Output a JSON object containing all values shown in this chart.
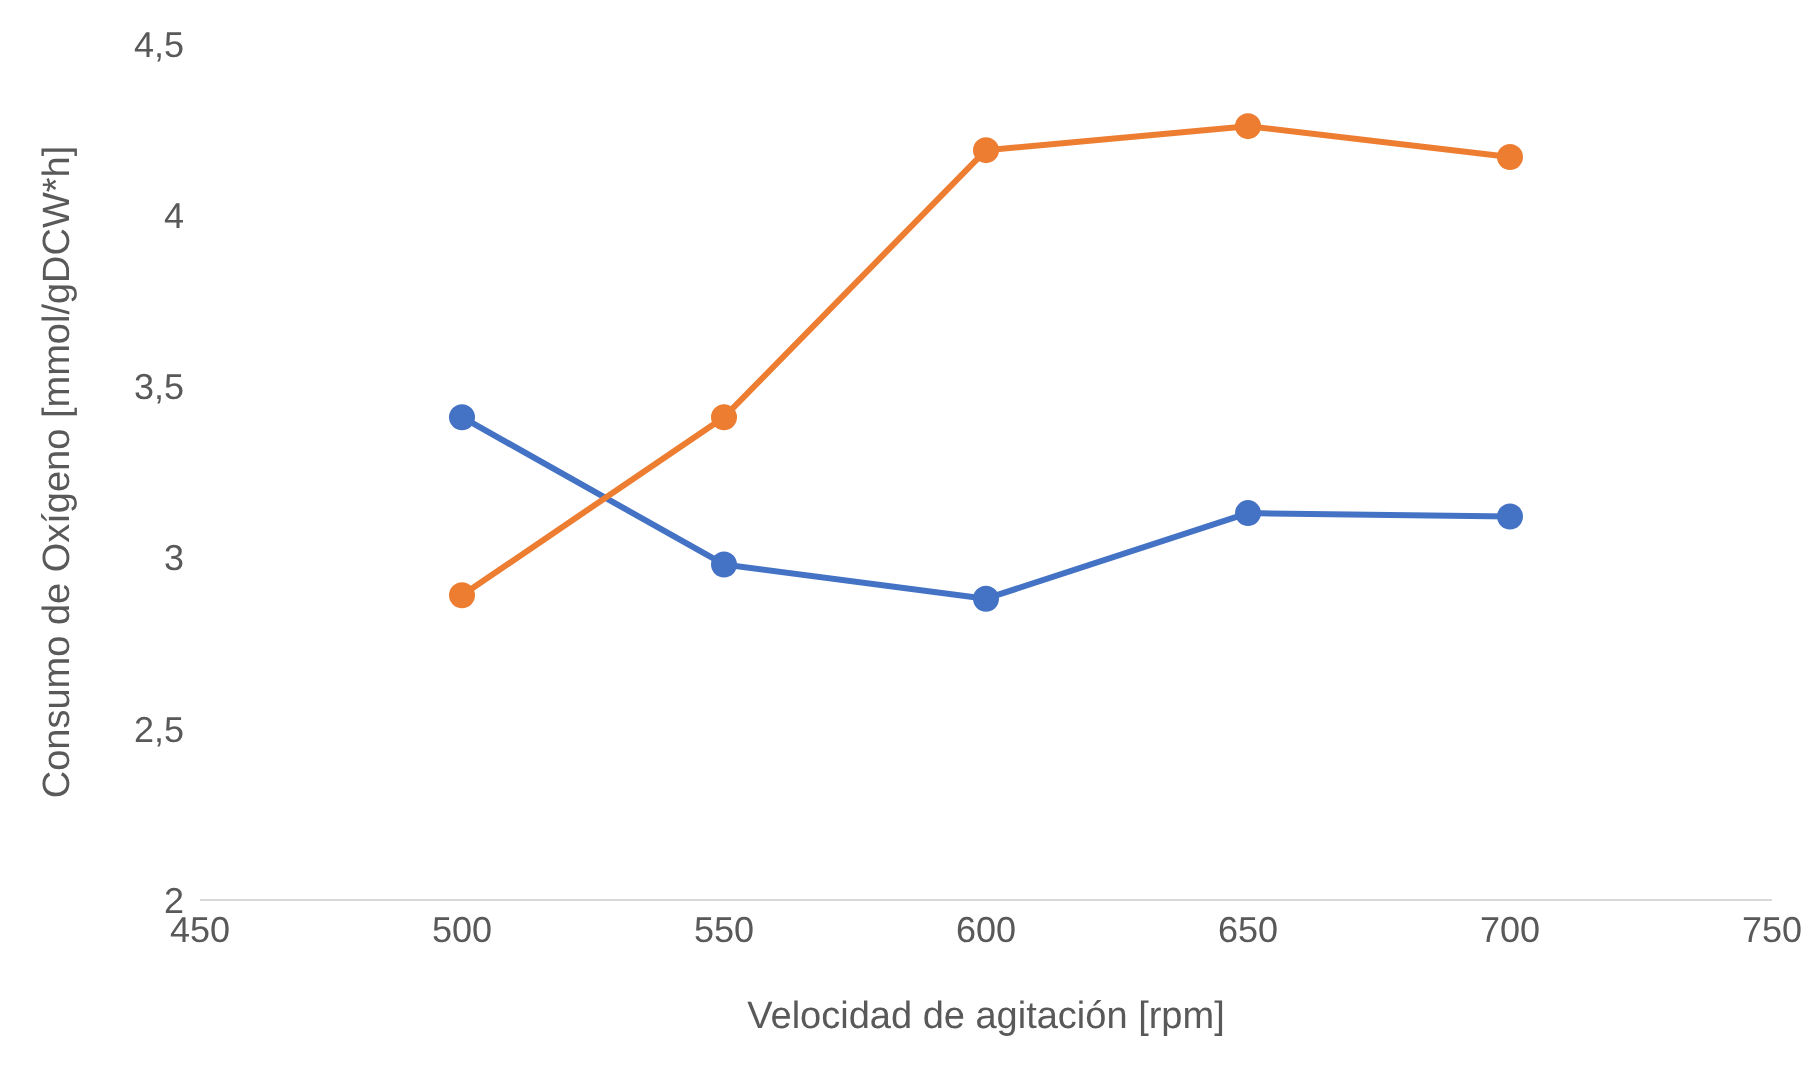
{
  "chart_data": {
    "type": "line",
    "xlabel": "Velocidad de agitación [rpm]",
    "ylabel": "Consumo de Oxígeno [mmol/gDCW*h]",
    "x": [
      500,
      550,
      600,
      650,
      700
    ],
    "series": [
      {
        "color": "#4472c4",
        "values": [
          3.41,
          2.98,
          2.88,
          3.13,
          3.12
        ]
      },
      {
        "color": "#ed7d31",
        "values": [
          2.89,
          3.41,
          4.19,
          4.26,
          4.17
        ]
      }
    ],
    "xlim": [
      450,
      750
    ],
    "xticks": [
      450,
      500,
      550,
      600,
      650,
      700,
      750
    ],
    "ylim": [
      2,
      4.5
    ],
    "yticks": [
      2,
      {
        "value": 2.5,
        "label": "2,5"
      },
      3,
      {
        "value": 3.5,
        "label": "3,5"
      },
      4,
      {
        "value": 4.5,
        "label": "4,5"
      }
    ],
    "grid": false,
    "legend": false,
    "marker": "circle",
    "line_style": "solid"
  }
}
